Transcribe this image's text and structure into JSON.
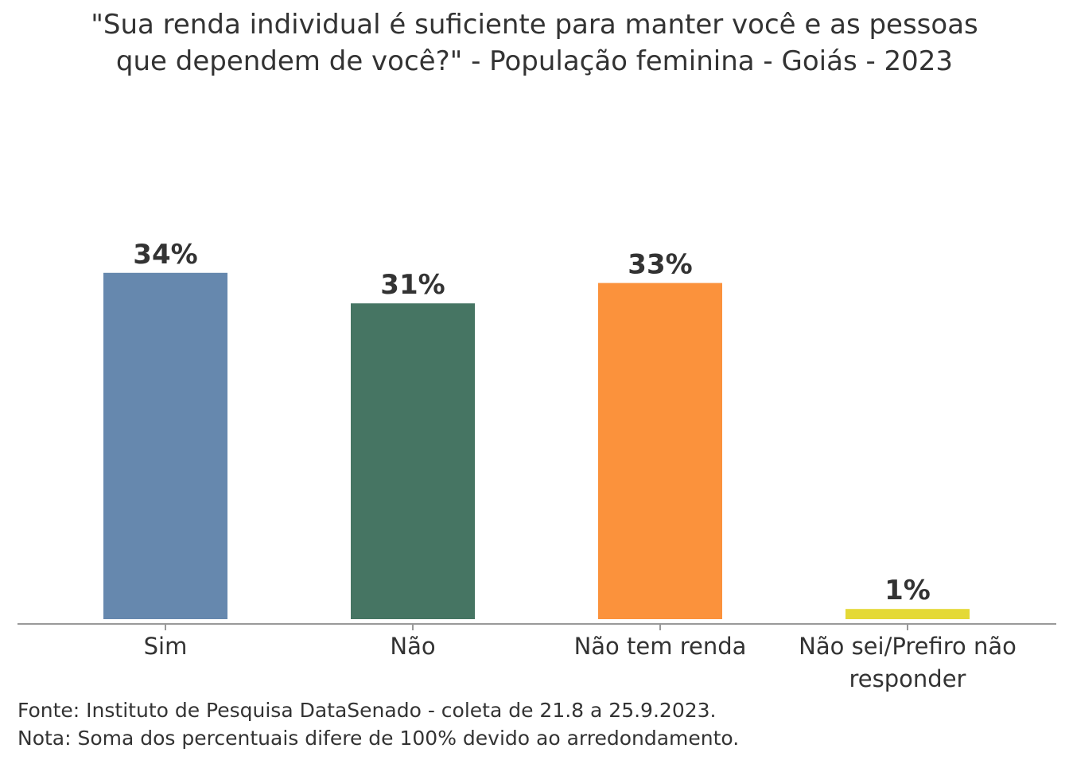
{
  "chart_data": {
    "type": "bar",
    "title": "\"Sua renda individual é suficiente para manter você e as pessoas que dependem de você?\" - População feminina - Goiás - 2023",
    "categories": [
      "Sim",
      "Não",
      "Não tem renda",
      "Não sei/Prefiro não responder"
    ],
    "values": [
      34,
      31,
      33,
      1
    ],
    "data_labels": [
      "34%",
      "31%",
      "33%",
      "1%"
    ],
    "colors": [
      "#6688ae",
      "#467563",
      "#fb923c",
      "#e4d936"
    ],
    "xlabel": "",
    "ylabel": "",
    "ylim": [
      0,
      40
    ],
    "grid": false
  },
  "footer": {
    "source": "Fonte: Instituto de Pesquisa DataSenado - coleta de 21.8 a 25.9.2023.",
    "note": "Nota: Soma dos percentuais difere de 100% devido ao arredondamento."
  }
}
